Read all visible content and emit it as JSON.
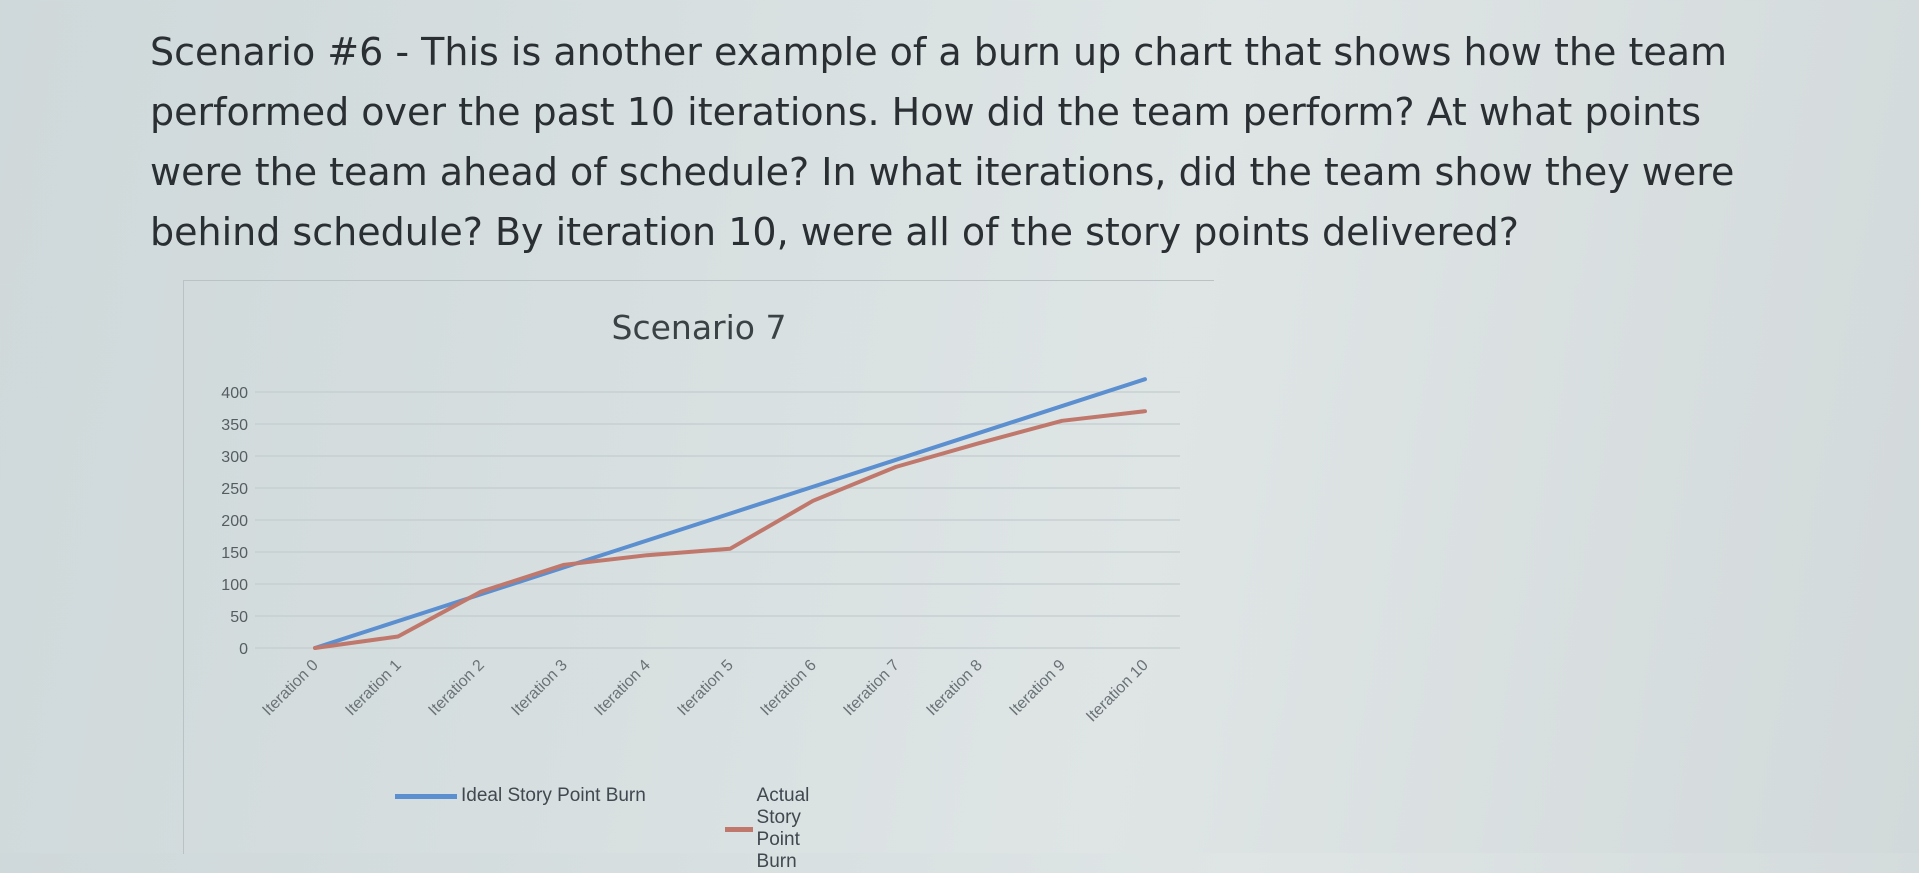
{
  "question": {
    "text": "Scenario #6 - This is another example of a burn up chart that shows how the team performed over the past 10 iterations. How did the team perform? At what points were the team ahead of schedule? In what iterations, did the team show they were behind schedule? By iteration 10, were all of the story points delivered?"
  },
  "chart_data": {
    "type": "line",
    "title": "Scenario 7",
    "xlabel": "",
    "ylabel": "",
    "categories": [
      "Iteration 0",
      "Iteration 1",
      "Iteration 2",
      "Iteration 3",
      "Iteration 4",
      "Iteration 5",
      "Iteration 6",
      "Iteration 7",
      "Iteration 8",
      "Iteration 9",
      "Iteration 10"
    ],
    "series": [
      {
        "name": "Ideal Story Point Burn",
        "color": "#5b8fd0",
        "values": [
          0,
          42,
          84,
          126,
          168,
          210,
          252,
          294,
          336,
          378,
          420
        ]
      },
      {
        "name": "Actual Story Point Burn",
        "color": "#c0786c",
        "values": [
          0,
          18,
          88,
          130,
          145,
          155,
          230,
          283,
          320,
          355,
          370
        ]
      }
    ],
    "ylim": [
      0,
      400
    ],
    "yticks": [
      0,
      50,
      100,
      150,
      200,
      250,
      300,
      350,
      400
    ],
    "grid": true,
    "legend_position": "bottom"
  }
}
